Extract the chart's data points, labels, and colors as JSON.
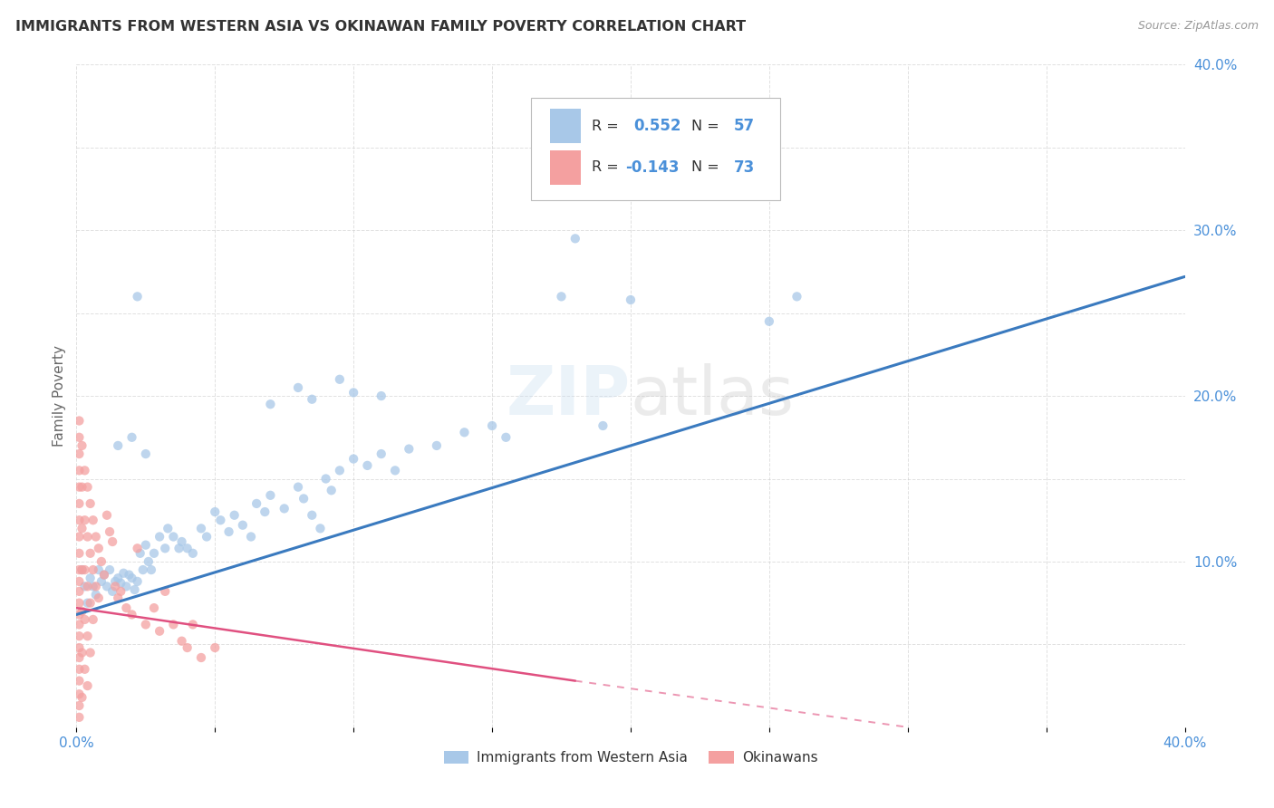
{
  "title": "IMMIGRANTS FROM WESTERN ASIA VS OKINAWAN FAMILY POVERTY CORRELATION CHART",
  "source": "Source: ZipAtlas.com",
  "ylabel": "Family Poverty",
  "xlim": [
    0,
    0.4
  ],
  "ylim": [
    0,
    0.4
  ],
  "xticks": [
    0.0,
    0.05,
    0.1,
    0.15,
    0.2,
    0.25,
    0.3,
    0.35,
    0.4
  ],
  "yticks": [
    0.0,
    0.05,
    0.1,
    0.15,
    0.2,
    0.25,
    0.3,
    0.35,
    0.4
  ],
  "watermark": "ZIPatlas",
  "blue_color": "#a8c8e8",
  "pink_color": "#f4a0a0",
  "blue_line_color": "#3a7abf",
  "pink_line_color": "#e05080",
  "axis_label_color": "#4a90d9",
  "grid_color": "#cccccc",
  "title_color": "#333333",
  "source_color": "#999999",
  "blue_line": {
    "x0": 0.0,
    "y0": 0.068,
    "x1": 0.4,
    "y1": 0.272
  },
  "pink_line": {
    "x0": 0.0,
    "y0": 0.072,
    "x1": 0.18,
    "y1": 0.028
  },
  "pink_line_dash": {
    "x0": 0.0,
    "y0": 0.072,
    "x1": 0.3,
    "y1": 0.0
  },
  "blue_scatter": [
    [
      0.002,
      0.095
    ],
    [
      0.003,
      0.085
    ],
    [
      0.004,
      0.075
    ],
    [
      0.005,
      0.09
    ],
    [
      0.006,
      0.085
    ],
    [
      0.007,
      0.08
    ],
    [
      0.008,
      0.095
    ],
    [
      0.009,
      0.088
    ],
    [
      0.01,
      0.092
    ],
    [
      0.011,
      0.085
    ],
    [
      0.012,
      0.095
    ],
    [
      0.013,
      0.082
    ],
    [
      0.014,
      0.088
    ],
    [
      0.015,
      0.09
    ],
    [
      0.016,
      0.087
    ],
    [
      0.017,
      0.093
    ],
    [
      0.018,
      0.085
    ],
    [
      0.019,
      0.092
    ],
    [
      0.02,
      0.09
    ],
    [
      0.021,
      0.083
    ],
    [
      0.022,
      0.088
    ],
    [
      0.023,
      0.105
    ],
    [
      0.024,
      0.095
    ],
    [
      0.025,
      0.11
    ],
    [
      0.026,
      0.1
    ],
    [
      0.027,
      0.095
    ],
    [
      0.028,
      0.105
    ],
    [
      0.03,
      0.115
    ],
    [
      0.032,
      0.108
    ],
    [
      0.033,
      0.12
    ],
    [
      0.035,
      0.115
    ],
    [
      0.037,
      0.108
    ],
    [
      0.038,
      0.112
    ],
    [
      0.04,
      0.108
    ],
    [
      0.042,
      0.105
    ],
    [
      0.045,
      0.12
    ],
    [
      0.047,
      0.115
    ],
    [
      0.05,
      0.13
    ],
    [
      0.052,
      0.125
    ],
    [
      0.055,
      0.118
    ],
    [
      0.057,
      0.128
    ],
    [
      0.06,
      0.122
    ],
    [
      0.063,
      0.115
    ],
    [
      0.065,
      0.135
    ],
    [
      0.068,
      0.13
    ],
    [
      0.07,
      0.14
    ],
    [
      0.075,
      0.132
    ],
    [
      0.08,
      0.145
    ],
    [
      0.082,
      0.138
    ],
    [
      0.085,
      0.128
    ],
    [
      0.088,
      0.12
    ],
    [
      0.09,
      0.15
    ],
    [
      0.092,
      0.143
    ],
    [
      0.095,
      0.155
    ],
    [
      0.1,
      0.162
    ],
    [
      0.105,
      0.158
    ],
    [
      0.11,
      0.165
    ],
    [
      0.115,
      0.155
    ],
    [
      0.12,
      0.168
    ],
    [
      0.13,
      0.17
    ],
    [
      0.14,
      0.178
    ],
    [
      0.15,
      0.182
    ],
    [
      0.155,
      0.175
    ],
    [
      0.175,
      0.26
    ],
    [
      0.19,
      0.182
    ],
    [
      0.2,
      0.258
    ],
    [
      0.25,
      0.245
    ],
    [
      0.022,
      0.26
    ],
    [
      0.02,
      0.175
    ],
    [
      0.025,
      0.165
    ],
    [
      0.015,
      0.17
    ],
    [
      0.18,
      0.295
    ],
    [
      0.26,
      0.26
    ],
    [
      0.07,
      0.195
    ],
    [
      0.08,
      0.205
    ],
    [
      0.085,
      0.198
    ],
    [
      0.095,
      0.21
    ],
    [
      0.1,
      0.202
    ],
    [
      0.11,
      0.2
    ]
  ],
  "pink_scatter": [
    [
      0.001,
      0.185
    ],
    [
      0.001,
      0.175
    ],
    [
      0.001,
      0.165
    ],
    [
      0.001,
      0.155
    ],
    [
      0.001,
      0.145
    ],
    [
      0.001,
      0.135
    ],
    [
      0.001,
      0.125
    ],
    [
      0.001,
      0.115
    ],
    [
      0.001,
      0.105
    ],
    [
      0.001,
      0.095
    ],
    [
      0.001,
      0.088
    ],
    [
      0.001,
      0.082
    ],
    [
      0.001,
      0.075
    ],
    [
      0.001,
      0.068
    ],
    [
      0.001,
      0.062
    ],
    [
      0.001,
      0.055
    ],
    [
      0.001,
      0.048
    ],
    [
      0.001,
      0.042
    ],
    [
      0.001,
      0.035
    ],
    [
      0.001,
      0.028
    ],
    [
      0.001,
      0.02
    ],
    [
      0.001,
      0.013
    ],
    [
      0.001,
      0.006
    ],
    [
      0.002,
      0.17
    ],
    [
      0.002,
      0.145
    ],
    [
      0.002,
      0.12
    ],
    [
      0.002,
      0.095
    ],
    [
      0.002,
      0.07
    ],
    [
      0.002,
      0.045
    ],
    [
      0.002,
      0.018
    ],
    [
      0.003,
      0.155
    ],
    [
      0.003,
      0.125
    ],
    [
      0.003,
      0.095
    ],
    [
      0.003,
      0.065
    ],
    [
      0.003,
      0.035
    ],
    [
      0.004,
      0.145
    ],
    [
      0.004,
      0.115
    ],
    [
      0.004,
      0.085
    ],
    [
      0.004,
      0.055
    ],
    [
      0.004,
      0.025
    ],
    [
      0.005,
      0.135
    ],
    [
      0.005,
      0.105
    ],
    [
      0.005,
      0.075
    ],
    [
      0.005,
      0.045
    ],
    [
      0.006,
      0.125
    ],
    [
      0.006,
      0.095
    ],
    [
      0.006,
      0.065
    ],
    [
      0.007,
      0.115
    ],
    [
      0.007,
      0.085
    ],
    [
      0.008,
      0.108
    ],
    [
      0.008,
      0.078
    ],
    [
      0.009,
      0.1
    ],
    [
      0.01,
      0.092
    ],
    [
      0.011,
      0.128
    ],
    [
      0.012,
      0.118
    ],
    [
      0.013,
      0.112
    ],
    [
      0.014,
      0.085
    ],
    [
      0.015,
      0.078
    ],
    [
      0.016,
      0.082
    ],
    [
      0.018,
      0.072
    ],
    [
      0.02,
      0.068
    ],
    [
      0.022,
      0.108
    ],
    [
      0.025,
      0.062
    ],
    [
      0.028,
      0.072
    ],
    [
      0.03,
      0.058
    ],
    [
      0.032,
      0.082
    ],
    [
      0.035,
      0.062
    ],
    [
      0.038,
      0.052
    ],
    [
      0.04,
      0.048
    ],
    [
      0.042,
      0.062
    ],
    [
      0.045,
      0.042
    ],
    [
      0.05,
      0.048
    ]
  ]
}
